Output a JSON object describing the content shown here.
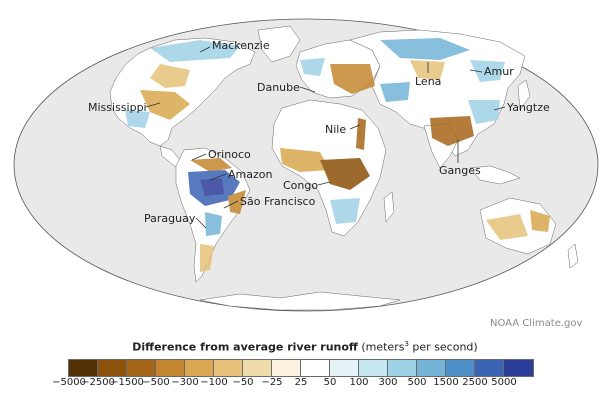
{
  "credit": "NOAA Climate.gov",
  "legend": {
    "title_main": "Difference from average river runoff",
    "title_unit_prefix": "(meters",
    "title_unit_exp": "3",
    "title_unit_suffix": " per second)",
    "ticks": [
      "−5000",
      "−2500",
      "−1500",
      "−500",
      "−300",
      "−100",
      "−50",
      "−25",
      "25",
      "50",
      "100",
      "300",
      "500",
      "1500",
      "2500",
      "5000"
    ],
    "colors": [
      "#543005",
      "#8c510a",
      "#a6661a",
      "#c4872f",
      "#d9a74f",
      "#e6c27b",
      "#f0dcab",
      "#fbf3dd",
      "#ffffff",
      "#e4f3f8",
      "#c4e6f0",
      "#9fd2e6",
      "#73b4d8",
      "#4f8fc7",
      "#3a63b3",
      "#2c3d99"
    ]
  },
  "rivers": [
    {
      "name": "Mackenzie"
    },
    {
      "name": "Mississippi"
    },
    {
      "name": "Orinoco"
    },
    {
      "name": "Amazon"
    },
    {
      "name": "São Francisco"
    },
    {
      "name": "Paraguay"
    },
    {
      "name": "Danube"
    },
    {
      "name": "Nile"
    },
    {
      "name": "Congo"
    },
    {
      "name": "Lena"
    },
    {
      "name": "Amur"
    },
    {
      "name": "Yangtze"
    },
    {
      "name": "Ganges"
    }
  ],
  "colors": {
    "ocean": "#e9e9e9",
    "land": "#ffffff",
    "outline": "#555555",
    "dry_dark": "#8c510a",
    "dry": "#d9a74f",
    "dry_light": "#f0dcab",
    "wet_light": "#c4e6f0",
    "wet": "#73b4d8",
    "wet_dark": "#2c3d99"
  }
}
